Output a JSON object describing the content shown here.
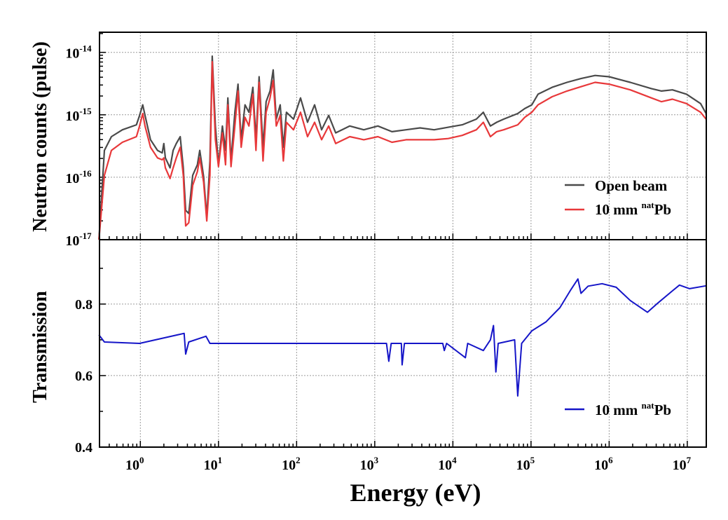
{
  "chart_data": [
    {
      "type": "line",
      "panel": "top",
      "xlabel": "Energy (eV)",
      "ylabel": "Neutron counts (pulse)",
      "xscale": "log",
      "yscale": "log",
      "xlim": [
        0.3,
        17500000
      ],
      "ylim": [
        1e-17,
        2.1e-14
      ],
      "grid": true,
      "legend_position": "bottom-right",
      "x_ticks": [
        {
          "base": "10",
          "exp": "0"
        },
        {
          "base": "10",
          "exp": "1"
        },
        {
          "base": "10",
          "exp": "2"
        },
        {
          "base": "10",
          "exp": "3"
        },
        {
          "base": "10",
          "exp": "4"
        },
        {
          "base": "10",
          "exp": "5"
        },
        {
          "base": "10",
          "exp": "6"
        },
        {
          "base": "10",
          "exp": "7"
        }
      ],
      "y_ticks": [
        {
          "base": "10",
          "exp": "-14"
        },
        {
          "base": "10",
          "exp": "-15"
        },
        {
          "base": "10",
          "exp": "-16"
        },
        {
          "base": "10",
          "exp": "-17"
        }
      ],
      "log10_energy_eV": [
        -0.53,
        -0.46,
        -0.37,
        -0.23,
        -0.05,
        -0.01,
        0.03,
        0.06,
        0.13,
        0.22,
        0.28,
        0.3,
        0.32,
        0.38,
        0.42,
        0.46,
        0.51,
        0.55,
        0.58,
        0.62,
        0.67,
        0.73,
        0.76,
        0.81,
        0.85,
        0.89,
        0.92,
        0.96,
        1.0,
        1.05,
        1.09,
        1.12,
        1.16,
        1.21,
        1.25,
        1.29,
        1.34,
        1.39,
        1.44,
        1.48,
        1.52,
        1.57,
        1.61,
        1.66,
        1.7,
        1.74,
        1.79,
        1.83,
        1.87,
        1.96,
        2.05,
        2.14,
        2.23,
        2.32,
        2.41,
        2.5,
        2.68,
        2.86,
        3.04,
        3.22,
        3.4,
        3.58,
        3.76,
        3.94,
        4.12,
        4.3,
        4.39,
        4.48,
        4.56,
        4.65,
        4.83,
        4.92,
        5.01,
        5.09,
        5.27,
        5.46,
        5.64,
        5.82,
        6.0,
        6.27,
        6.54,
        6.67,
        6.81,
        6.99,
        7.17,
        7.24
      ],
      "series": [
        {
          "name": "Open beam",
          "legend_label": "Open beam",
          "color": "#4a4a4a",
          "log10_counts": [
            -17.0,
            -15.57,
            -15.35,
            -15.24,
            -15.16,
            -15.01,
            -14.84,
            -15.01,
            -15.4,
            -15.57,
            -15.61,
            -15.46,
            -15.69,
            -15.85,
            -15.57,
            -15.46,
            -15.35,
            -15.85,
            -16.53,
            -16.58,
            -15.97,
            -15.8,
            -15.57,
            -15.99,
            -16.64,
            -15.74,
            -14.06,
            -15.18,
            -15.8,
            -15.18,
            -15.57,
            -14.73,
            -15.74,
            -14.96,
            -14.51,
            -15.4,
            -14.84,
            -14.96,
            -14.56,
            -15.4,
            -14.39,
            -15.52,
            -14.79,
            -14.62,
            -14.28,
            -15.07,
            -14.84,
            -15.52,
            -14.96,
            -15.07,
            -14.73,
            -15.12,
            -14.84,
            -15.24,
            -15.01,
            -15.29,
            -15.18,
            -15.24,
            -15.18,
            -15.27,
            -15.24,
            -15.21,
            -15.24,
            -15.2,
            -15.16,
            -15.07,
            -14.96,
            -15.18,
            -15.12,
            -15.07,
            -14.98,
            -14.9,
            -14.84,
            -14.67,
            -14.56,
            -14.48,
            -14.42,
            -14.37,
            -14.39,
            -14.48,
            -14.58,
            -14.62,
            -14.6,
            -14.67,
            -14.82,
            -14.98
          ]
        },
        {
          "name": "10 mm natPb",
          "legend_label": {
            "pre": "10 mm ",
            "sup": "nat",
            "post": "Pb"
          },
          "color": "#e8383a",
          "log10_counts": [
            -17.0,
            -15.97,
            -15.57,
            -15.44,
            -15.35,
            -15.18,
            -14.98,
            -15.18,
            -15.52,
            -15.69,
            -15.72,
            -15.69,
            -15.85,
            -16.02,
            -15.85,
            -15.69,
            -15.52,
            -15.97,
            -16.78,
            -16.73,
            -16.13,
            -15.91,
            -15.69,
            -16.08,
            -16.7,
            -15.97,
            -14.15,
            -15.4,
            -15.83,
            -15.29,
            -15.8,
            -14.84,
            -15.83,
            -15.18,
            -14.62,
            -15.52,
            -15.04,
            -15.18,
            -14.67,
            -15.57,
            -14.48,
            -15.74,
            -14.96,
            -14.73,
            -14.45,
            -15.18,
            -15.01,
            -15.74,
            -15.12,
            -15.24,
            -14.96,
            -15.35,
            -15.12,
            -15.4,
            -15.18,
            -15.46,
            -15.35,
            -15.4,
            -15.35,
            -15.44,
            -15.4,
            -15.4,
            -15.4,
            -15.38,
            -15.33,
            -15.24,
            -15.12,
            -15.35,
            -15.27,
            -15.24,
            -15.16,
            -15.04,
            -14.96,
            -14.84,
            -14.71,
            -14.62,
            -14.55,
            -14.48,
            -14.51,
            -14.6,
            -14.73,
            -14.79,
            -14.75,
            -14.82,
            -14.96,
            -15.07
          ]
        }
      ]
    },
    {
      "type": "line",
      "panel": "bottom",
      "xlabel": "Energy (eV)",
      "ylabel": "Transmission",
      "xscale": "log",
      "yscale": "linear",
      "xlim": [
        0.3,
        17500000
      ],
      "ylim": [
        0.4,
        0.98
      ],
      "grid": true,
      "legend_position": "bottom-right",
      "y_ticks": [
        "0.4",
        "0.6",
        "0.8"
      ],
      "series": [
        {
          "name": "10 mm natPb",
          "legend_label": {
            "pre": "10 mm ",
            "sup": "nat",
            "post": "Pb"
          },
          "color": "#1515c8",
          "log10_energy_eV": [
            -0.53,
            -0.46,
            -0.01,
            0.56,
            0.58,
            0.62,
            0.84,
            0.89,
            1.96,
            3.15,
            3.18,
            3.21,
            3.34,
            3.35,
            3.38,
            3.87,
            3.89,
            3.92,
            4.16,
            4.19,
            4.39,
            4.48,
            4.52,
            4.55,
            4.58,
            4.79,
            4.83,
            4.88,
            5.01,
            5.19,
            5.37,
            5.51,
            5.6,
            5.64,
            5.73,
            5.91,
            6.09,
            6.27,
            6.49,
            6.63,
            6.81,
            6.9,
            7.03,
            7.24
          ],
          "transmission": [
            0.714,
            0.694,
            0.69,
            0.718,
            0.66,
            0.694,
            0.71,
            0.69,
            0.69,
            0.69,
            0.64,
            0.69,
            0.69,
            0.63,
            0.69,
            0.69,
            0.67,
            0.69,
            0.65,
            0.69,
            0.67,
            0.7,
            0.74,
            0.61,
            0.69,
            0.7,
            0.543,
            0.69,
            0.725,
            0.75,
            0.79,
            0.84,
            0.87,
            0.83,
            0.85,
            0.857,
            0.847,
            0.81,
            0.777,
            0.804,
            0.837,
            0.853,
            0.843,
            0.851
          ]
        }
      ]
    }
  ]
}
